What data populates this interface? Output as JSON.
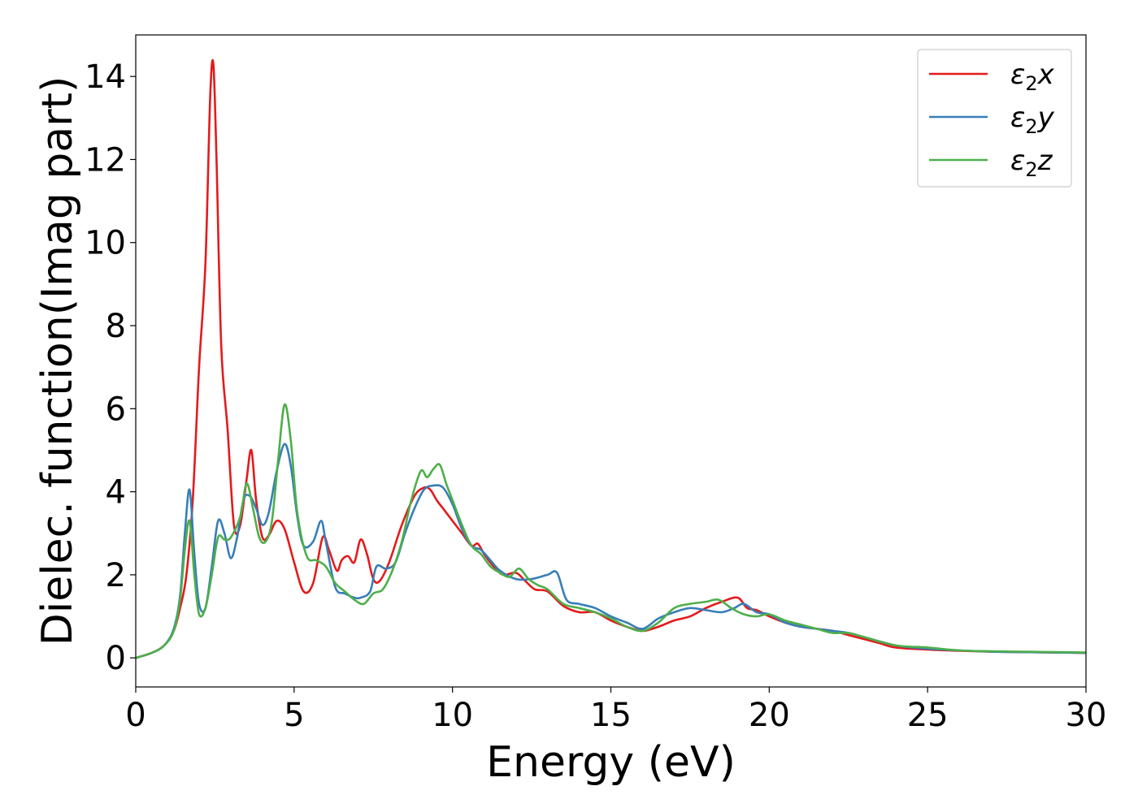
{
  "chart_data": {
    "type": "line",
    "title": "",
    "xlabel": "Energy (eV)",
    "ylabel": "Dielec. function(Imag part)",
    "xlim": [
      0,
      30
    ],
    "ylim": [
      -0.7,
      15
    ],
    "xticks": [
      0,
      5,
      10,
      15,
      20,
      25,
      30
    ],
    "yticks": [
      0,
      2,
      4,
      6,
      8,
      10,
      12,
      14
    ],
    "xtick_labels": [
      "0",
      "5",
      "10",
      "15",
      "20",
      "25",
      "30"
    ],
    "ytick_labels": [
      "0",
      "2",
      "4",
      "6",
      "8",
      "10",
      "12",
      "14"
    ],
    "grid": false,
    "legend_position": "top-right",
    "series": [
      {
        "name": "ε₂x",
        "legend": {
          "main": "ε",
          "sub": "2",
          "axis": "x"
        },
        "color": "#e41a1c",
        "x": [
          0,
          0.5,
          0.9,
          1.2,
          1.4,
          1.6,
          1.8,
          2.0,
          2.2,
          2.35,
          2.45,
          2.55,
          2.7,
          2.9,
          3.1,
          3.3,
          3.5,
          3.65,
          3.8,
          4.0,
          4.2,
          4.45,
          4.7,
          5.0,
          5.3,
          5.6,
          5.9,
          6.1,
          6.35,
          6.5,
          6.7,
          6.9,
          7.1,
          7.3,
          7.5,
          7.7,
          8.0,
          8.4,
          8.8,
          9.1,
          9.3,
          9.5,
          9.7,
          10.0,
          10.3,
          10.6,
          10.8,
          11.0,
          11.3,
          11.6,
          12.0,
          12.3,
          12.6,
          13.0,
          13.5,
          14.0,
          14.5,
          15.0,
          15.5,
          16.0,
          16.5,
          17.0,
          17.5,
          18.0,
          18.5,
          19.0,
          19.3,
          19.6,
          20.0,
          20.5,
          21.0,
          21.5,
          22.0,
          22.5,
          23.0,
          23.5,
          24.0,
          25.0,
          26.0,
          27.0,
          28.0,
          29.0,
          30.0
        ],
        "values": [
          0,
          0.12,
          0.3,
          0.65,
          1.2,
          2.0,
          3.8,
          7.0,
          9.5,
          13.5,
          14.3,
          12.0,
          7.5,
          5.5,
          3.2,
          3.2,
          4.3,
          5.0,
          3.8,
          2.9,
          2.95,
          3.3,
          3.1,
          2.3,
          1.6,
          1.8,
          2.9,
          2.6,
          2.1,
          2.35,
          2.45,
          2.3,
          2.85,
          2.5,
          1.9,
          1.85,
          2.3,
          3.2,
          3.9,
          4.1,
          4.05,
          3.8,
          3.6,
          3.3,
          3.0,
          2.7,
          2.75,
          2.5,
          2.2,
          2.0,
          2.05,
          1.85,
          1.65,
          1.6,
          1.25,
          1.1,
          1.1,
          0.9,
          0.75,
          0.65,
          0.75,
          0.9,
          1.0,
          1.2,
          1.35,
          1.45,
          1.2,
          1.15,
          1.0,
          0.85,
          0.75,
          0.7,
          0.65,
          0.55,
          0.45,
          0.35,
          0.25,
          0.2,
          0.17,
          0.15,
          0.14,
          0.13,
          0.12
        ]
      },
      {
        "name": "ε₂y",
        "legend": {
          "main": "ε",
          "sub": "2",
          "axis": "y"
        },
        "color": "#377eb8",
        "x": [
          0,
          0.5,
          0.9,
          1.2,
          1.4,
          1.55,
          1.7,
          1.85,
          2.0,
          2.2,
          2.4,
          2.6,
          2.8,
          3.0,
          3.2,
          3.4,
          3.6,
          3.8,
          4.0,
          4.2,
          4.45,
          4.7,
          4.9,
          5.1,
          5.3,
          5.6,
          5.85,
          6.0,
          6.3,
          6.6,
          6.9,
          7.1,
          7.4,
          7.6,
          7.9,
          8.2,
          8.5,
          8.8,
          9.1,
          9.4,
          9.7,
          10.0,
          10.3,
          10.6,
          10.9,
          11.2,
          11.5,
          12.0,
          12.5,
          13.0,
          13.3,
          13.6,
          14.0,
          14.5,
          15.0,
          15.5,
          16.0,
          16.5,
          17.0,
          17.5,
          18.0,
          18.5,
          18.9,
          19.2,
          19.6,
          20.0,
          20.5,
          21.0,
          21.5,
          22.0,
          22.5,
          23.0,
          24.0,
          25.0,
          26.0,
          27.0,
          28.0,
          29.0,
          30.0
        ],
        "values": [
          0,
          0.12,
          0.3,
          0.7,
          1.5,
          3.0,
          4.05,
          2.5,
          1.3,
          1.2,
          2.2,
          3.3,
          3.0,
          2.4,
          2.9,
          3.8,
          3.9,
          3.6,
          3.2,
          3.5,
          4.5,
          5.15,
          4.6,
          3.4,
          2.7,
          2.8,
          3.3,
          2.8,
          1.7,
          1.55,
          1.45,
          1.45,
          1.6,
          2.2,
          2.15,
          2.3,
          3.0,
          3.6,
          4.05,
          4.15,
          4.1,
          3.7,
          3.1,
          2.7,
          2.6,
          2.35,
          2.1,
          1.9,
          1.9,
          2.0,
          2.05,
          1.4,
          1.3,
          1.2,
          1.0,
          0.85,
          0.7,
          0.95,
          1.1,
          1.2,
          1.15,
          1.1,
          1.2,
          1.3,
          1.1,
          1.05,
          0.85,
          0.75,
          0.7,
          0.65,
          0.6,
          0.5,
          0.3,
          0.22,
          0.18,
          0.15,
          0.14,
          0.13,
          0.12
        ]
      },
      {
        "name": "ε₂z",
        "legend": {
          "main": "ε",
          "sub": "2",
          "axis": "z"
        },
        "color": "#4daf4a",
        "x": [
          0,
          0.5,
          0.9,
          1.2,
          1.4,
          1.55,
          1.7,
          1.85,
          2.0,
          2.2,
          2.4,
          2.6,
          2.8,
          3.0,
          3.3,
          3.5,
          3.7,
          3.9,
          4.1,
          4.3,
          4.5,
          4.7,
          4.9,
          5.1,
          5.4,
          5.7,
          6.0,
          6.3,
          6.6,
          6.9,
          7.2,
          7.5,
          7.8,
          8.1,
          8.4,
          8.7,
          9.0,
          9.2,
          9.4,
          9.6,
          9.8,
          10.0,
          10.3,
          10.6,
          10.9,
          11.2,
          11.5,
          11.8,
          12.1,
          12.4,
          12.7,
          13.0,
          13.5,
          14.0,
          14.5,
          15.0,
          15.5,
          16.0,
          16.5,
          17.0,
          17.5,
          18.0,
          18.4,
          18.8,
          19.2,
          19.6,
          20.0,
          20.5,
          21.0,
          21.5,
          22.0,
          22.5,
          23.0,
          24.0,
          25.0,
          26.0,
          27.0,
          28.0,
          29.0,
          30.0
        ],
        "values": [
          0,
          0.12,
          0.3,
          0.65,
          1.4,
          2.6,
          3.3,
          2.0,
          1.05,
          1.2,
          2.0,
          2.9,
          2.85,
          2.9,
          3.4,
          4.2,
          3.6,
          2.9,
          2.8,
          3.3,
          4.8,
          6.1,
          5.2,
          3.5,
          2.45,
          2.35,
          2.2,
          1.8,
          1.6,
          1.4,
          1.3,
          1.55,
          1.65,
          2.1,
          2.8,
          3.8,
          4.5,
          4.35,
          4.55,
          4.65,
          4.2,
          3.8,
          3.2,
          2.7,
          2.5,
          2.2,
          2.05,
          1.95,
          2.15,
          1.9,
          1.75,
          1.65,
          1.3,
          1.2,
          1.1,
          0.95,
          0.75,
          0.65,
          0.85,
          1.2,
          1.3,
          1.35,
          1.4,
          1.2,
          1.05,
          1.0,
          1.05,
          0.9,
          0.8,
          0.7,
          0.6,
          0.6,
          0.5,
          0.3,
          0.25,
          0.18,
          0.16,
          0.15,
          0.14,
          0.13
        ]
      }
    ]
  }
}
